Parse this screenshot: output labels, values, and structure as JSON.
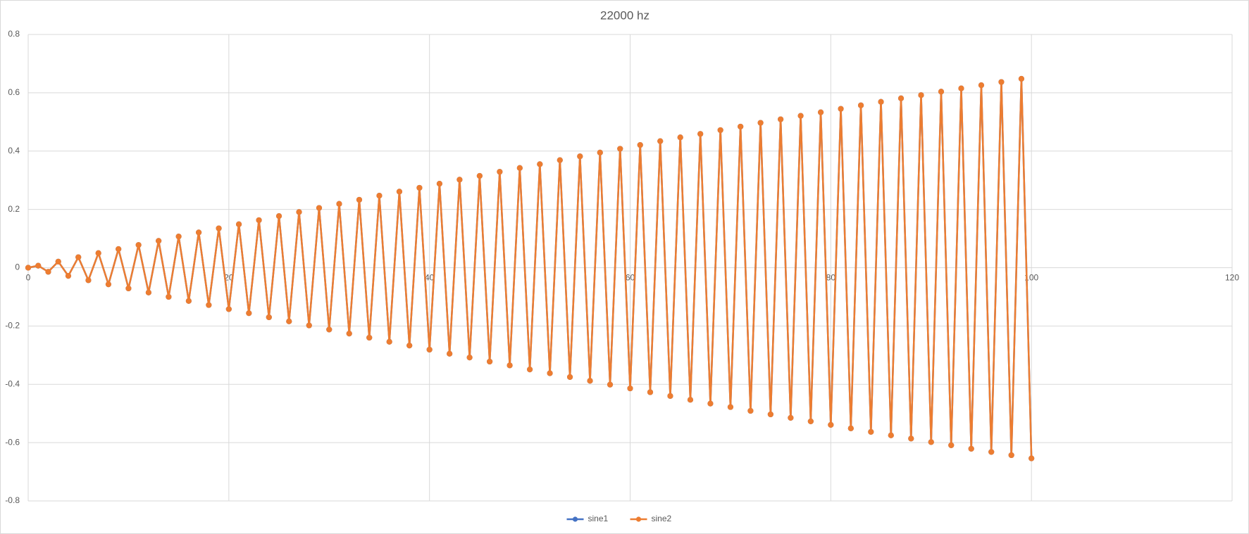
{
  "chart_data": {
    "type": "line",
    "title": "22000 hz",
    "x": [
      0,
      1,
      2,
      3,
      4,
      5,
      6,
      7,
      8,
      9,
      10,
      11,
      12,
      13,
      14,
      15,
      16,
      17,
      18,
      19,
      20,
      21,
      22,
      23,
      24,
      25,
      26,
      27,
      28,
      29,
      30,
      31,
      32,
      33,
      34,
      35,
      36,
      37,
      38,
      39,
      40,
      41,
      42,
      43,
      44,
      45,
      46,
      47,
      48,
      49,
      50,
      51,
      52,
      53,
      54,
      55,
      56,
      57,
      58,
      59,
      60,
      61,
      62,
      63,
      64,
      65,
      66,
      67,
      68,
      69,
      70,
      71,
      72,
      73,
      74,
      75,
      76,
      77,
      78,
      79,
      80,
      81,
      82,
      83,
      84,
      85,
      86,
      87,
      88,
      89,
      90,
      91,
      92,
      93,
      94,
      95,
      96,
      97,
      98,
      99,
      100
    ],
    "series": [
      {
        "name": "sine1",
        "color": "#4472c4",
        "values": [
          0,
          0.007,
          -0.014,
          0.021,
          -0.028,
          0.036,
          -0.043,
          0.05,
          -0.057,
          0.064,
          -0.071,
          0.078,
          -0.085,
          0.092,
          -0.1,
          0.107,
          -0.114,
          0.121,
          -0.128,
          0.135,
          -0.142,
          0.149,
          -0.156,
          0.163,
          -0.17,
          0.177,
          -0.184,
          0.191,
          -0.198,
          0.205,
          -0.212,
          0.219,
          -0.226,
          0.233,
          -0.24,
          0.247,
          -0.254,
          0.261,
          -0.267,
          0.274,
          -0.281,
          0.288,
          -0.295,
          0.302,
          -0.308,
          0.315,
          -0.322,
          0.329,
          -0.335,
          0.342,
          -0.349,
          0.355,
          -0.362,
          0.369,
          -0.375,
          0.382,
          -0.388,
          0.395,
          -0.401,
          0.408,
          -0.414,
          0.421,
          -0.427,
          0.434,
          -0.44,
          0.447,
          -0.453,
          0.459,
          -0.466,
          0.472,
          -0.478,
          0.484,
          -0.491,
          0.497,
          -0.503,
          0.509,
          -0.515,
          0.521,
          -0.527,
          0.533,
          -0.539,
          0.545,
          -0.551,
          0.557,
          -0.563,
          0.569,
          -0.575,
          0.581,
          -0.586,
          0.592,
          -0.598,
          0.604,
          -0.609,
          0.615,
          -0.621,
          0.626,
          -0.632,
          0.637,
          -0.643,
          0.648,
          -0.654
        ]
      },
      {
        "name": "sine2",
        "color": "#ed7d31",
        "values": [
          0,
          0.007,
          -0.014,
          0.021,
          -0.028,
          0.036,
          -0.043,
          0.05,
          -0.057,
          0.064,
          -0.071,
          0.078,
          -0.085,
          0.092,
          -0.1,
          0.107,
          -0.114,
          0.121,
          -0.128,
          0.135,
          -0.142,
          0.149,
          -0.156,
          0.163,
          -0.17,
          0.177,
          -0.184,
          0.191,
          -0.198,
          0.205,
          -0.212,
          0.219,
          -0.226,
          0.233,
          -0.24,
          0.247,
          -0.254,
          0.261,
          -0.267,
          0.274,
          -0.281,
          0.288,
          -0.295,
          0.302,
          -0.308,
          0.315,
          -0.322,
          0.329,
          -0.335,
          0.342,
          -0.349,
          0.355,
          -0.362,
          0.369,
          -0.375,
          0.382,
          -0.388,
          0.395,
          -0.401,
          0.408,
          -0.414,
          0.421,
          -0.427,
          0.434,
          -0.44,
          0.447,
          -0.453,
          0.459,
          -0.466,
          0.472,
          -0.478,
          0.484,
          -0.491,
          0.497,
          -0.503,
          0.509,
          -0.515,
          0.521,
          -0.527,
          0.533,
          -0.539,
          0.545,
          -0.551,
          0.557,
          -0.563,
          0.569,
          -0.575,
          0.581,
          -0.586,
          0.592,
          -0.598,
          0.604,
          -0.609,
          0.615,
          -0.621,
          0.626,
          -0.632,
          0.637,
          -0.643,
          0.648,
          -0.654
        ]
      }
    ],
    "xlim": [
      0,
      120
    ],
    "xticks": [
      0,
      20,
      40,
      60,
      80,
      100,
      120
    ],
    "ylim": [
      -0.8,
      0.8
    ],
    "yticks": [
      -0.8,
      -0.6,
      -0.4,
      -0.2,
      0,
      0.2,
      0.4,
      0.6,
      0.8
    ],
    "grid": true,
    "legend": "bottom"
  }
}
